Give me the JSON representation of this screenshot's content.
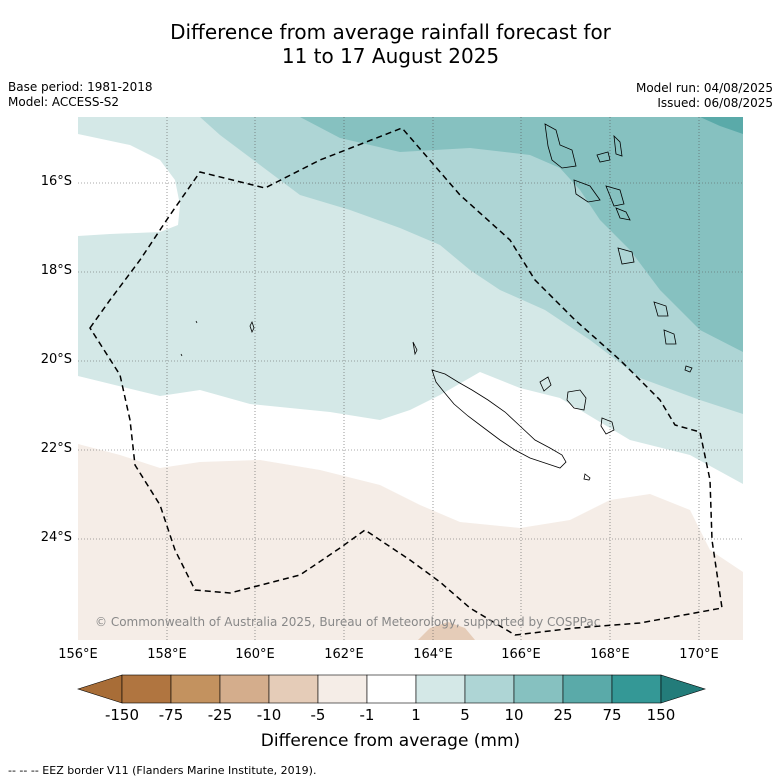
{
  "title_line1": "Difference from average rainfall forecast for",
  "title_line2": "11 to 17 August 2025",
  "base_period": "Base period: 1981-2018",
  "model": "Model: ACCESS-S2",
  "model_run": "Model run: 04/08/2025",
  "issued": "Issued: 06/08/2025",
  "copyright": "© Commonwealth of Australia 2025, Bureau of Meteorology, supported by COSPPac",
  "footnote": "--  --  -- EEZ border V11 (Flanders Marine Institute, 2019).",
  "latitude_labels": [
    "16°S",
    "18°S",
    "20°S",
    "22°S",
    "24°S"
  ],
  "longitude_labels": [
    "156°E",
    "158°E",
    "160°E",
    "162°E",
    "164°E",
    "166°E",
    "168°E",
    "170°E"
  ],
  "colorbar": {
    "title": "Difference from average (mm)",
    "tick_labels": [
      "-150",
      "-75",
      "-25",
      "-10",
      "-5",
      "-1",
      "1",
      "5",
      "10",
      "25",
      "75",
      "150"
    ],
    "colors": [
      "#a86d37",
      "#b07540",
      "#c3925f",
      "#d4ad8c",
      "#e5ccb8",
      "#f5ede7",
      "#ffffff",
      "#d4e8e7",
      "#aed5d5",
      "#86c1c0",
      "#5aaaa9",
      "#349896",
      "#237c7a"
    ]
  }
}
